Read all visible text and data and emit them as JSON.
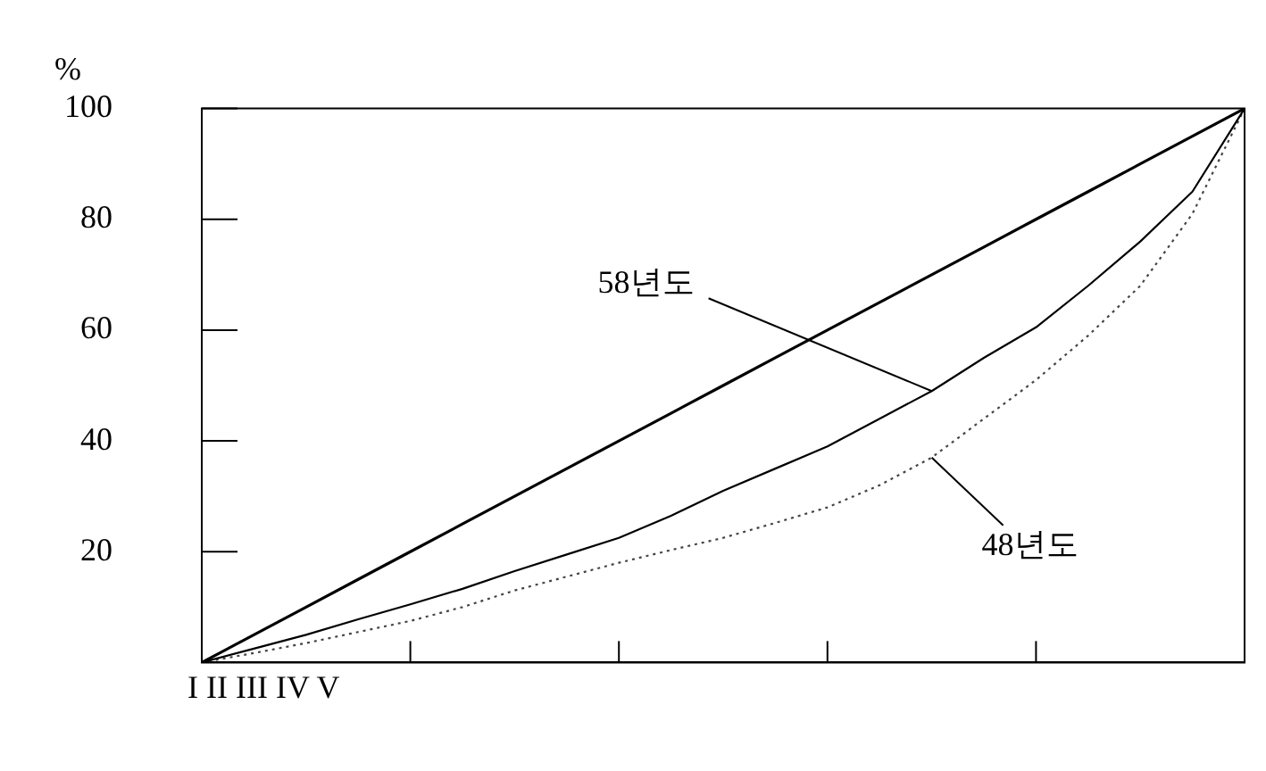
{
  "chart_data": {
    "type": "line",
    "ylabel": "%",
    "ylim": [
      0,
      100
    ],
    "categories": [
      null,
      null,
      null,
      null,
      null,
      null,
      null,
      null,
      null,
      null,
      null,
      null,
      null,
      null,
      null,
      null,
      null,
      null,
      null,
      null,
      null
    ],
    "yticks": [
      20,
      40,
      60,
      80,
      100
    ],
    "grid": false,
    "legend": false,
    "marker": "none",
    "series": [
      {
        "color": "#000000",
        "values": [
          0,
          5,
          10,
          15,
          20,
          25,
          30,
          35,
          40,
          45,
          50,
          55,
          60,
          65,
          70,
          75,
          80,
          85,
          90,
          95,
          100
        ],
        "line_style": "solid"
      },
      {
        "color": "#000000",
        "values": [
          0,
          2.5,
          5,
          7.8,
          10.5,
          13.3,
          16.5,
          19.5,
          22.5,
          26.5,
          31,
          35,
          39,
          44,
          49,
          55,
          60.5,
          68,
          76,
          85,
          100
        ],
        "line_style": "solid"
      },
      {
        "color": "#444444",
        "values": [
          0,
          1.7,
          3.5,
          5.5,
          7.5,
          10,
          13,
          15.5,
          18,
          20.3,
          22.5,
          25.2,
          28,
          32,
          37,
          44,
          51,
          59,
          68,
          81,
          100
        ],
        "line_style": "dotted"
      }
    ],
    "annotations": [
      "58년도",
      "48년도",
      "I II III IV V"
    ]
  }
}
